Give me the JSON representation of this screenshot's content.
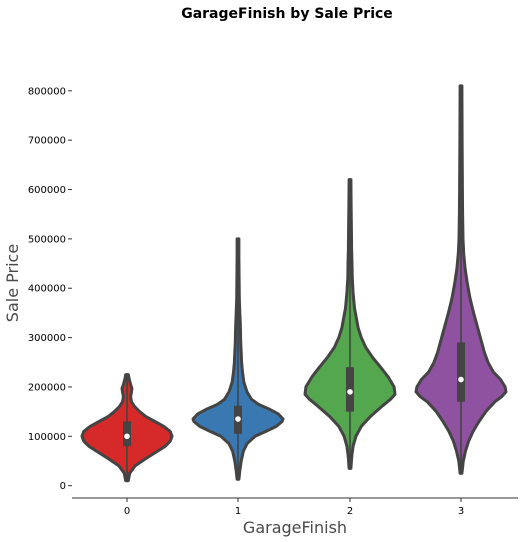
{
  "chart_data": {
    "type": "violin",
    "title": "GarageFinish by Sale Price",
    "xlabel": "GarageFinish",
    "ylabel": "Sale Price",
    "categories": [
      "0",
      "1",
      "2",
      "3"
    ],
    "y_ticks": [
      0,
      100000,
      200000,
      300000,
      400000,
      500000,
      600000,
      700000,
      800000
    ],
    "y_tick_labels": [
      "0",
      "100000",
      "200000",
      "300000",
      "400000",
      "500000",
      "600000",
      "700000",
      "800000"
    ],
    "ylim": [
      -25000,
      830000
    ],
    "grid": false,
    "colors": [
      "#d62a2a",
      "#3a78b2",
      "#55a74f",
      "#8f52a1"
    ],
    "violins": [
      {
        "category": "0",
        "min": 10000,
        "max": 225000,
        "q1": 80000,
        "median": 100000,
        "q3": 130000,
        "profile": [
          [
            10000,
            0.03
          ],
          [
            25000,
            0.06
          ],
          [
            40000,
            0.18
          ],
          [
            55000,
            0.42
          ],
          [
            70000,
            0.68
          ],
          [
            80000,
            0.85
          ],
          [
            90000,
            0.96
          ],
          [
            100000,
            1.0
          ],
          [
            110000,
            0.96
          ],
          [
            120000,
            0.82
          ],
          [
            130000,
            0.62
          ],
          [
            140000,
            0.42
          ],
          [
            150000,
            0.28
          ],
          [
            160000,
            0.17
          ],
          [
            170000,
            0.1
          ],
          [
            180000,
            0.08
          ],
          [
            190000,
            0.1
          ],
          [
            197000,
            0.11
          ],
          [
            205000,
            0.08
          ],
          [
            215000,
            0.05
          ],
          [
            225000,
            0.03
          ]
        ]
      },
      {
        "category": "1",
        "min": 13000,
        "max": 500000,
        "q1": 105000,
        "median": 135000,
        "q3": 162000,
        "profile": [
          [
            13000,
            0.02
          ],
          [
            30000,
            0.04
          ],
          [
            50000,
            0.07
          ],
          [
            70000,
            0.12
          ],
          [
            85000,
            0.2
          ],
          [
            100000,
            0.38
          ],
          [
            110000,
            0.62
          ],
          [
            120000,
            0.85
          ],
          [
            130000,
            0.98
          ],
          [
            135000,
            1.0
          ],
          [
            145000,
            0.9
          ],
          [
            155000,
            0.7
          ],
          [
            165000,
            0.45
          ],
          [
            175000,
            0.3
          ],
          [
            190000,
            0.2
          ],
          [
            210000,
            0.13
          ],
          [
            230000,
            0.1
          ],
          [
            250000,
            0.08
          ],
          [
            270000,
            0.07
          ],
          [
            290000,
            0.06
          ],
          [
            310000,
            0.055
          ],
          [
            330000,
            0.05
          ],
          [
            350000,
            0.04
          ],
          [
            380000,
            0.03
          ],
          [
            420000,
            0.025
          ],
          [
            460000,
            0.02
          ],
          [
            500000,
            0.02
          ]
        ]
      },
      {
        "category": "2",
        "min": 35000,
        "max": 620000,
        "q1": 150000,
        "median": 190000,
        "q3": 240000,
        "profile": [
          [
            35000,
            0.02
          ],
          [
            60000,
            0.04
          ],
          [
            80000,
            0.07
          ],
          [
            100000,
            0.13
          ],
          [
            120000,
            0.25
          ],
          [
            140000,
            0.45
          ],
          [
            160000,
            0.7
          ],
          [
            175000,
            0.9
          ],
          [
            185000,
            1.0
          ],
          [
            200000,
            0.98
          ],
          [
            220000,
            0.85
          ],
          [
            240000,
            0.68
          ],
          [
            260000,
            0.5
          ],
          [
            280000,
            0.35
          ],
          [
            300000,
            0.25
          ],
          [
            320000,
            0.18
          ],
          [
            340000,
            0.14
          ],
          [
            360000,
            0.1
          ],
          [
            390000,
            0.07
          ],
          [
            420000,
            0.05
          ],
          [
            450000,
            0.045
          ],
          [
            480000,
            0.035
          ],
          [
            520000,
            0.03
          ],
          [
            570000,
            0.025
          ],
          [
            620000,
            0.02
          ]
        ]
      },
      {
        "category": "3",
        "min": 25000,
        "max": 810000,
        "q1": 170000,
        "median": 215000,
        "q3": 290000,
        "profile": [
          [
            25000,
            0.02
          ],
          [
            50000,
            0.05
          ],
          [
            70000,
            0.1
          ],
          [
            90000,
            0.17
          ],
          [
            110000,
            0.27
          ],
          [
            130000,
            0.4
          ],
          [
            150000,
            0.55
          ],
          [
            170000,
            0.75
          ],
          [
            180000,
            0.9
          ],
          [
            190000,
            1.0
          ],
          [
            200000,
            0.98
          ],
          [
            215000,
            0.88
          ],
          [
            230000,
            0.72
          ],
          [
            250000,
            0.6
          ],
          [
            270000,
            0.52
          ],
          [
            290000,
            0.46
          ],
          [
            310000,
            0.4
          ],
          [
            330000,
            0.34
          ],
          [
            350000,
            0.28
          ],
          [
            380000,
            0.2
          ],
          [
            410000,
            0.14
          ],
          [
            440000,
            0.09
          ],
          [
            470000,
            0.06
          ],
          [
            500000,
            0.045
          ],
          [
            550000,
            0.035
          ],
          [
            600000,
            0.03
          ],
          [
            700000,
            0.025
          ],
          [
            810000,
            0.02
          ]
        ]
      }
    ]
  }
}
